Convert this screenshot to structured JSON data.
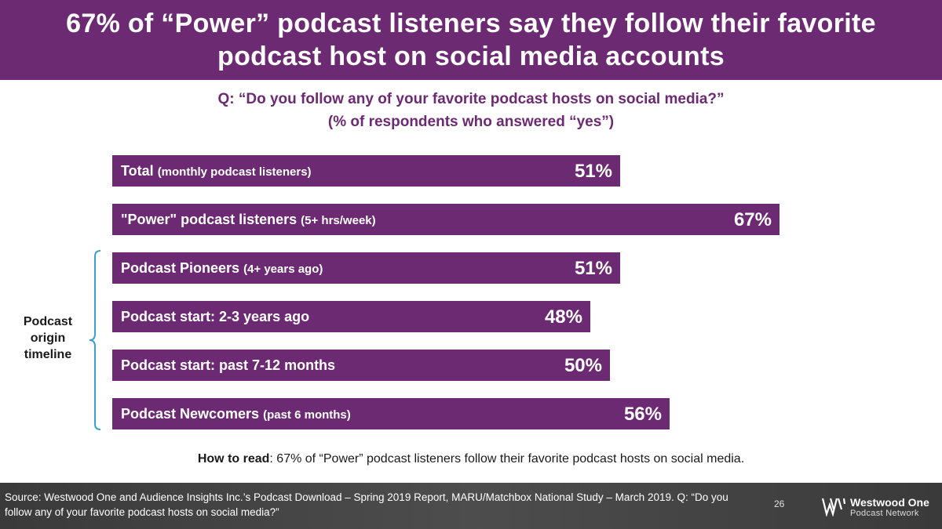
{
  "header": {
    "title": "67% of “Power” podcast listeners say they follow their favorite podcast host on social media accounts"
  },
  "question": {
    "line1": "Q: “Do you follow any of your favorite podcast hosts on social media?”",
    "line2": "(% of respondents who answered “yes”)"
  },
  "colors": {
    "bar": "#6c2a73",
    "bracket": "#3b9fd1",
    "footer": "#444444"
  },
  "chart_data": {
    "type": "bar",
    "orientation": "horizontal",
    "title": "Q: “Do you follow any of your favorite podcast hosts on social media?”",
    "subtitle": "(% of respondents who answered “yes”)",
    "unit": "%",
    "xlim": [
      0,
      100
    ],
    "grid": false,
    "categories": [
      {
        "label": "Total",
        "sub": "(monthly podcast listeners)"
      },
      {
        "label": "\"Power\" podcast listeners",
        "sub": "(5+ hrs/week)"
      },
      {
        "label": "Podcast Pioneers",
        "sub": "(4+ years ago)"
      },
      {
        "label": "Podcast start: 2-3 years ago",
        "sub": ""
      },
      {
        "label": "Podcast start: past 7-12 months",
        "sub": ""
      },
      {
        "label": "Podcast Newcomers",
        "sub": "(past 6 months)"
      }
    ],
    "values": [
      51,
      67,
      51,
      48,
      50,
      56
    ],
    "value_labels": [
      "51%",
      "67%",
      "51%",
      "48%",
      "50%",
      "56%"
    ]
  },
  "timeline_label": "Podcast origin timeline",
  "how_to_read": {
    "label": "How to read",
    "text": ": 67% of “Power” podcast listeners follow their favorite podcast hosts on social media."
  },
  "footer": {
    "source": "Source: Westwood One and Audience Insights Inc.’s Podcast Download – Spring 2019 Report, MARU/Matchbox National Study – March 2019. Q: “Do you follow any of your favorite podcast hosts on social media?”",
    "page_number": "26",
    "logo_title": "Westwood One",
    "logo_subtitle": "Podcast Network"
  }
}
